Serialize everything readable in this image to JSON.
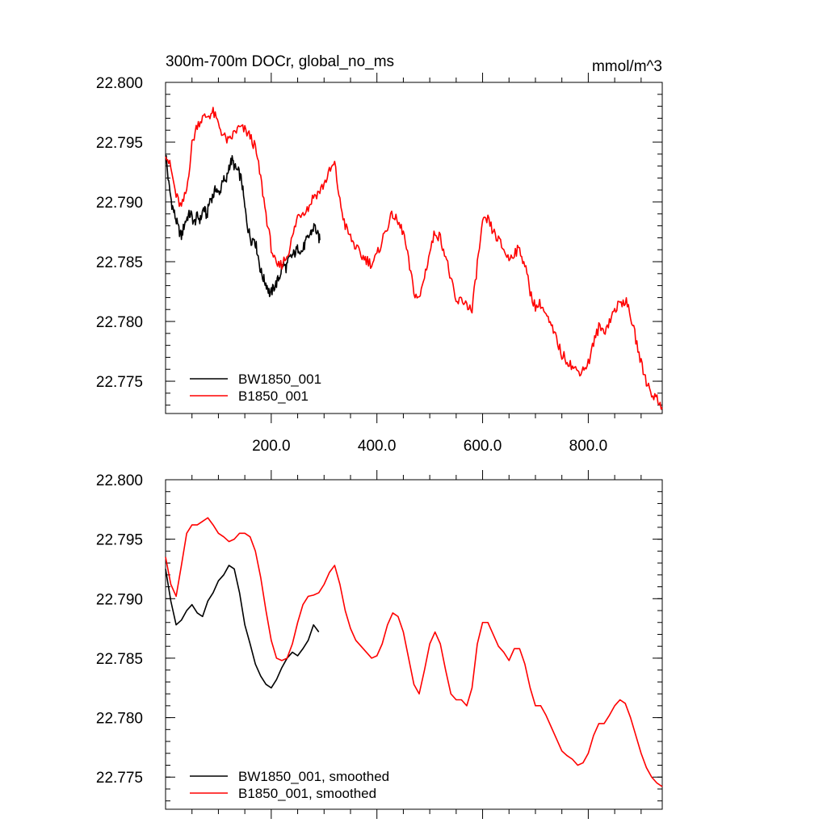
{
  "chart_data": [
    {
      "type": "line",
      "title": "300m-700m DOCr, global_no_ms",
      "units": "mmol/m^3",
      "xlabel": "",
      "ylabel": "",
      "xlim": [
        0,
        940
      ],
      "ylim": [
        22.7723,
        22.8
      ],
      "xticks": [
        200,
        400,
        600,
        800
      ],
      "xtick_labels": [
        "200.0",
        "400.0",
        "600.0",
        "800.0"
      ],
      "yticks": [
        22.8,
        22.795,
        22.79,
        22.785,
        22.78,
        22.775
      ],
      "ytick_labels": [
        "22.800",
        "22.795",
        "22.790",
        "22.785",
        "22.780",
        "22.775"
      ],
      "grid": false,
      "legend_position": "bottom-left",
      "series": [
        {
          "name": "BW1850_001",
          "color": "#000000",
          "x": [
            0,
            6,
            12,
            18,
            24,
            30,
            36,
            42,
            48,
            54,
            60,
            66,
            72,
            78,
            84,
            90,
            96,
            102,
            108,
            114,
            120,
            126,
            132,
            138,
            144,
            150,
            156,
            162,
            168,
            174,
            180,
            186,
            192,
            198,
            204,
            210,
            216,
            222,
            228,
            234,
            240,
            246,
            252,
            258,
            264,
            270,
            276,
            282,
            288,
            292
          ],
          "y": [
            22.7942,
            22.7915,
            22.7898,
            22.7888,
            22.7878,
            22.7871,
            22.7882,
            22.7888,
            22.789,
            22.7882,
            22.7888,
            22.7885,
            22.7895,
            22.7888,
            22.7902,
            22.7905,
            22.7912,
            22.7905,
            22.792,
            22.7915,
            22.793,
            22.7935,
            22.7928,
            22.7925,
            22.7918,
            22.7895,
            22.7878,
            22.7868,
            22.787,
            22.7858,
            22.7842,
            22.7835,
            22.783,
            22.7822,
            22.7828,
            22.7832,
            22.7838,
            22.7848,
            22.7845,
            22.7852,
            22.7855,
            22.7858,
            22.7862,
            22.7858,
            22.7865,
            22.787,
            22.7875,
            22.788,
            22.7872,
            22.7868
          ]
        },
        {
          "name": "B1850_001",
          "color": "#ff0000",
          "x": [
            0,
            10,
            20,
            30,
            40,
            50,
            60,
            70,
            80,
            90,
            100,
            110,
            120,
            130,
            140,
            150,
            160,
            170,
            180,
            190,
            200,
            210,
            220,
            230,
            240,
            250,
            260,
            270,
            280,
            290,
            300,
            310,
            320,
            330,
            340,
            350,
            360,
            370,
            380,
            390,
            400,
            410,
            420,
            430,
            440,
            450,
            460,
            470,
            480,
            490,
            500,
            510,
            520,
            530,
            540,
            550,
            560,
            570,
            580,
            590,
            600,
            610,
            620,
            630,
            640,
            650,
            660,
            670,
            680,
            690,
            700,
            710,
            720,
            730,
            740,
            750,
            760,
            770,
            780,
            790,
            800,
            810,
            820,
            830,
            840,
            850,
            860,
            870,
            880,
            890,
            900,
            910,
            920,
            930,
            940
          ],
          "y": [
            22.7942,
            22.7928,
            22.7905,
            22.7895,
            22.791,
            22.7948,
            22.7965,
            22.797,
            22.7972,
            22.7975,
            22.7965,
            22.7955,
            22.795,
            22.7958,
            22.7962,
            22.796,
            22.7955,
            22.7945,
            22.792,
            22.789,
            22.7862,
            22.7845,
            22.7848,
            22.7855,
            22.787,
            22.7888,
            22.7892,
            22.7895,
            22.7905,
            22.7908,
            22.7915,
            22.7925,
            22.7932,
            22.79,
            22.788,
            22.787,
            22.7862,
            22.7855,
            22.7852,
            22.7848,
            22.7855,
            22.7868,
            22.788,
            22.789,
            22.7882,
            22.7875,
            22.785,
            22.7825,
            22.7818,
            22.7838,
            22.7858,
            22.7875,
            22.787,
            22.7855,
            22.7835,
            22.7815,
            22.7818,
            22.7815,
            22.7808,
            22.7848,
            22.7882,
            22.7885,
            22.7875,
            22.7868,
            22.786,
            22.7852,
            22.7858,
            22.786,
            22.7848,
            22.7825,
            22.7812,
            22.7815,
            22.7805,
            22.7795,
            22.7785,
            22.7772,
            22.7768,
            22.7762,
            22.7758,
            22.776,
            22.7765,
            22.7782,
            22.7795,
            22.7792,
            22.78,
            22.781,
            22.7815,
            22.7818,
            22.7805,
            22.7785,
            22.7765,
            22.775,
            22.774,
            22.7735,
            22.7728
          ]
        }
      ]
    },
    {
      "type": "line",
      "title": "",
      "xlabel": "",
      "ylabel": "",
      "xlim": [
        0,
        940
      ],
      "ylim": [
        22.7723,
        22.8
      ],
      "xticks": [
        200,
        400,
        600,
        800
      ],
      "yticks": [
        22.8,
        22.795,
        22.79,
        22.785,
        22.78,
        22.775
      ],
      "ytick_labels": [
        "22.800",
        "22.795",
        "22.790",
        "22.785",
        "22.780",
        "22.775"
      ],
      "grid": false,
      "legend_position": "bottom-left",
      "series": [
        {
          "name": "BW1850_001, smoothed",
          "color": "#000000",
          "x": [
            0,
            10,
            20,
            30,
            40,
            50,
            60,
            70,
            80,
            90,
            100,
            110,
            120,
            130,
            140,
            150,
            160,
            170,
            180,
            190,
            200,
            210,
            220,
            230,
            240,
            250,
            260,
            270,
            280,
            290
          ],
          "y": [
            22.7925,
            22.7898,
            22.7878,
            22.7882,
            22.789,
            22.7895,
            22.7888,
            22.7885,
            22.7898,
            22.7905,
            22.7915,
            22.792,
            22.7928,
            22.7925,
            22.7905,
            22.7878,
            22.7862,
            22.7845,
            22.7835,
            22.7828,
            22.7825,
            22.7832,
            22.7842,
            22.785,
            22.7855,
            22.7852,
            22.7858,
            22.7865,
            22.7878,
            22.7872
          ]
        },
        {
          "name": "B1850_001, smoothed",
          "color": "#ff0000",
          "x": [
            0,
            10,
            20,
            30,
            40,
            50,
            60,
            70,
            80,
            90,
            100,
            110,
            120,
            130,
            140,
            150,
            160,
            170,
            180,
            190,
            200,
            210,
            220,
            230,
            240,
            250,
            260,
            270,
            280,
            290,
            300,
            310,
            320,
            330,
            340,
            350,
            360,
            370,
            380,
            390,
            400,
            410,
            420,
            430,
            440,
            450,
            460,
            470,
            480,
            490,
            500,
            510,
            520,
            530,
            540,
            550,
            560,
            570,
            580,
            590,
            600,
            610,
            620,
            630,
            640,
            650,
            660,
            670,
            680,
            690,
            700,
            710,
            720,
            730,
            740,
            750,
            760,
            770,
            780,
            790,
            800,
            810,
            820,
            830,
            840,
            850,
            860,
            870,
            880,
            890,
            900,
            910,
            920,
            930,
            940
          ],
          "y": [
            22.7935,
            22.7912,
            22.7902,
            22.7928,
            22.7955,
            22.7962,
            22.7962,
            22.7965,
            22.7968,
            22.7962,
            22.7955,
            22.7952,
            22.7948,
            22.795,
            22.7955,
            22.7955,
            22.7952,
            22.794,
            22.7918,
            22.789,
            22.7865,
            22.785,
            22.7848,
            22.785,
            22.7862,
            22.788,
            22.7895,
            22.7902,
            22.7903,
            22.7905,
            22.7912,
            22.7922,
            22.7928,
            22.7912,
            22.789,
            22.7875,
            22.7865,
            22.786,
            22.7855,
            22.785,
            22.7852,
            22.7862,
            22.7878,
            22.7888,
            22.7885,
            22.7872,
            22.785,
            22.7828,
            22.782,
            22.784,
            22.7862,
            22.7872,
            22.7862,
            22.784,
            22.782,
            22.7815,
            22.7815,
            22.781,
            22.7825,
            22.7862,
            22.788,
            22.788,
            22.787,
            22.786,
            22.7855,
            22.7848,
            22.7858,
            22.7858,
            22.7845,
            22.7825,
            22.781,
            22.781,
            22.7802,
            22.7792,
            22.7782,
            22.7772,
            22.7768,
            22.7765,
            22.776,
            22.7762,
            22.777,
            22.7785,
            22.7795,
            22.7795,
            22.7802,
            22.781,
            22.7815,
            22.7812,
            22.78,
            22.7785,
            22.777,
            22.7758,
            22.775,
            22.7745,
            22.7742
          ]
        }
      ]
    }
  ]
}
